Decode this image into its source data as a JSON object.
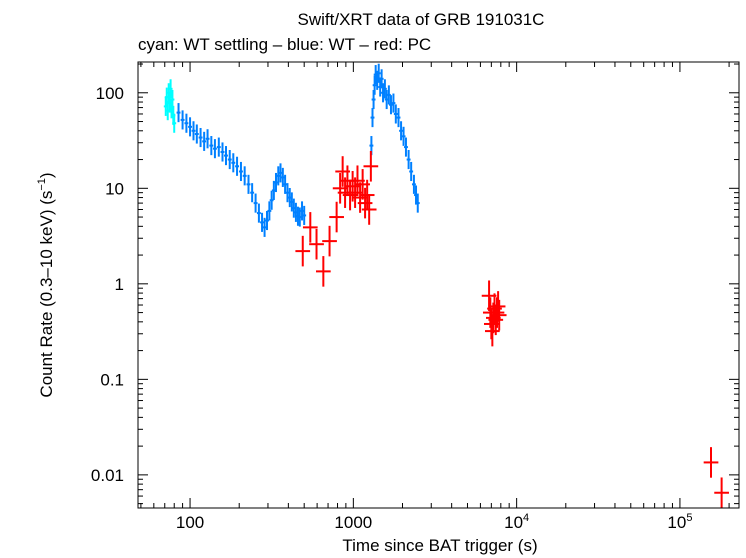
{
  "chart_data": {
    "type": "scatter",
    "title": "Swift/XRT data of GRB 191031C",
    "subtitle": "cyan: WT settling – blue: WT – red: PC",
    "xlabel": "Time since BAT trigger (s)",
    "ylabel_main": "Count Rate (0.3–10 keV) (s",
    "ylabel_sup": "−1",
    "ylabel_end": ")",
    "x_scale": "log",
    "y_scale": "log",
    "xlim": [
      48,
      230000
    ],
    "ylim": [
      0.0045,
      210
    ],
    "x_ticks": [
      {
        "value": 100,
        "label": "100"
      },
      {
        "value": 1000,
        "label": "1000"
      },
      {
        "value": 10000,
        "base": "10",
        "exp": "4"
      },
      {
        "value": 100000,
        "base": "10",
        "exp": "5"
      }
    ],
    "y_ticks": [
      {
        "value": 100,
        "label": "100"
      },
      {
        "value": 10,
        "label": "10"
      },
      {
        "value": 1,
        "label": "1"
      },
      {
        "value": 0.1,
        "label": "0.1"
      },
      {
        "value": 0.01,
        "label": "0.01"
      }
    ],
    "grid": false,
    "series": [
      {
        "name": "WT settling",
        "color": "#00ffff",
        "points": [
          [
            71,
            72
          ],
          [
            72,
            90
          ],
          [
            73,
            65
          ],
          [
            74,
            100
          ],
          [
            75,
            78
          ],
          [
            76,
            110
          ],
          [
            77,
            68
          ],
          [
            78,
            85
          ],
          [
            79,
            58
          ],
          [
            80,
            48
          ]
        ]
      },
      {
        "name": "WT",
        "color": "#0080ff",
        "points": [
          [
            85,
            62
          ],
          [
            90,
            52
          ],
          [
            95,
            48
          ],
          [
            100,
            44
          ],
          [
            105,
            40
          ],
          [
            110,
            37
          ],
          [
            116,
            34
          ],
          [
            122,
            31
          ],
          [
            128,
            33
          ],
          [
            135,
            28
          ],
          [
            142,
            26
          ],
          [
            150,
            27
          ],
          [
            158,
            24
          ],
          [
            166,
            22
          ],
          [
            175,
            20
          ],
          [
            184,
            18.5
          ],
          [
            194,
            17
          ],
          [
            205,
            15
          ],
          [
            216,
            13.5
          ],
          [
            228,
            11
          ],
          [
            240,
            9
          ],
          [
            252,
            7
          ],
          [
            264,
            5.5
          ],
          [
            276,
            4.4
          ],
          [
            286,
            3.9
          ],
          [
            296,
            4.6
          ],
          [
            306,
            5.8
          ],
          [
            316,
            7.5
          ],
          [
            326,
            9.5
          ],
          [
            336,
            11.5
          ],
          [
            347,
            13.5
          ],
          [
            358,
            14.5
          ],
          [
            370,
            13
          ],
          [
            382,
            11
          ],
          [
            395,
            9
          ],
          [
            408,
            8
          ],
          [
            420,
            7.2
          ],
          [
            432,
            6.2
          ],
          [
            445,
            5.6
          ],
          [
            458,
            5.1
          ],
          [
            470,
            5.0
          ],
          [
            485,
            5.8
          ],
          [
            500,
            5.2
          ],
          [
            1290,
            28
          ],
          [
            1310,
            55
          ],
          [
            1330,
            85
          ],
          [
            1350,
            120
          ],
          [
            1370,
            155
          ],
          [
            1400,
            135
          ],
          [
            1430,
            160
          ],
          [
            1460,
            115
          ],
          [
            1490,
            140
          ],
          [
            1520,
            100
          ],
          [
            1560,
            110
          ],
          [
            1600,
            85
          ],
          [
            1650,
            95
          ],
          [
            1700,
            75
          ],
          [
            1760,
            78
          ],
          [
            1820,
            60
          ],
          [
            1890,
            55
          ],
          [
            1960,
            40
          ],
          [
            2030,
            35
          ],
          [
            2100,
            27
          ],
          [
            2180,
            20
          ],
          [
            2260,
            15
          ],
          [
            2350,
            11
          ],
          [
            2420,
            8.5
          ],
          [
            2480,
            7
          ]
        ]
      },
      {
        "name": "PC",
        "color": "#ff0000",
        "points": [
          [
            490,
            2.2
          ],
          [
            545,
            3.9
          ],
          [
            595,
            2.6
          ],
          [
            655,
            1.35
          ],
          [
            715,
            2.8
          ],
          [
            790,
            5.0
          ],
          [
            830,
            10
          ],
          [
            860,
            15
          ],
          [
            890,
            9
          ],
          [
            920,
            12
          ],
          [
            955,
            8.5
          ],
          [
            990,
            10.5
          ],
          [
            1025,
            9
          ],
          [
            1060,
            12
          ],
          [
            1100,
            8
          ],
          [
            1140,
            11
          ],
          [
            1180,
            7
          ],
          [
            1215,
            8.5
          ],
          [
            1250,
            6
          ],
          [
            1280,
            17
          ],
          [
            6780,
            0.75
          ],
          [
            6900,
            0.5
          ],
          [
            7000,
            0.38
          ],
          [
            7100,
            0.32
          ],
          [
            7200,
            0.44
          ],
          [
            7320,
            0.55
          ],
          [
            7450,
            0.42
          ],
          [
            7580,
            0.5
          ],
          [
            7700,
            0.58
          ],
          [
            7820,
            0.47
          ],
          [
            155000,
            0.0135
          ],
          [
            180000,
            0.0065
          ]
        ]
      }
    ]
  }
}
